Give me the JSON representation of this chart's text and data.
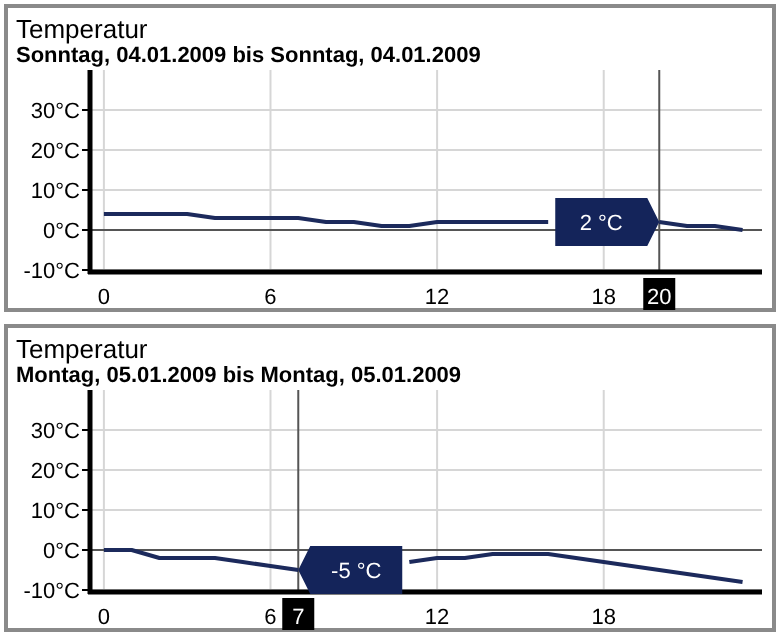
{
  "chart_data": [
    {
      "type": "line",
      "title": "Temperatur",
      "subtitle": "Sonntag, 04.01.2009 bis Sonntag, 04.01.2009",
      "x": [
        0,
        1,
        2,
        3,
        4,
        5,
        6,
        7,
        8,
        9,
        10,
        11,
        12,
        13,
        14,
        15,
        16,
        17,
        18,
        19,
        20,
        21,
        22,
        23
      ],
      "series": [
        {
          "color": "#1c2a5c",
          "values": [
            4,
            4,
            4,
            4,
            3,
            3,
            3,
            3,
            2,
            2,
            1,
            1,
            2,
            2,
            2,
            2,
            2,
            null,
            null,
            null,
            2,
            1,
            1,
            0
          ]
        }
      ],
      "xlim": [
        -0.5,
        23.7
      ],
      "xticks": [
        0,
        6,
        12,
        18
      ],
      "ylim": [
        -10.5,
        40
      ],
      "yticks": [
        {
          "value": -10,
          "label": "-10°C"
        },
        {
          "value": 0,
          "label": "0°C"
        },
        {
          "value": 10,
          "label": "10°C"
        },
        {
          "value": 20,
          "label": "20°C"
        },
        {
          "value": 30,
          "label": "30°C"
        }
      ],
      "grid": true,
      "marker": "none",
      "line_style": "solid",
      "ref_lines": [
        {
          "axis": "y",
          "value": 0,
          "color": "#555555"
        },
        {
          "axis": "x",
          "value": 20,
          "label": "20",
          "color": "#555555"
        }
      ],
      "annotations": [
        {
          "text": "2 °C",
          "x": 20,
          "y": 2
        }
      ]
    },
    {
      "type": "line",
      "title": "Temperatur",
      "subtitle": "Montag, 05.01.2009 bis Montag, 05.01.2009",
      "x": [
        0,
        1,
        2,
        3,
        4,
        5,
        6,
        7,
        8,
        9,
        10,
        11,
        12,
        13,
        14,
        15,
        16,
        17,
        18,
        19,
        20,
        21,
        22,
        23
      ],
      "series": [
        {
          "color": "#1c2a5c",
          "values": [
            0,
            0,
            -2,
            -2,
            -2,
            -3,
            -4,
            -5,
            null,
            null,
            null,
            -3,
            -2,
            -2,
            -1,
            -1,
            -1,
            -2,
            -3,
            -4,
            -5,
            -6,
            -7,
            -8
          ]
        }
      ],
      "xlim": [
        -0.5,
        23.7
      ],
      "xticks": [
        0,
        6,
        12,
        18
      ],
      "ylim": [
        -10.5,
        40
      ],
      "yticks": [
        {
          "value": -10,
          "label": "-10°C"
        },
        {
          "value": 0,
          "label": "0°C"
        },
        {
          "value": 10,
          "label": "10°C"
        },
        {
          "value": 20,
          "label": "20°C"
        },
        {
          "value": 30,
          "label": "30°C"
        }
      ],
      "grid": true,
      "marker": "none",
      "line_style": "solid",
      "ref_lines": [
        {
          "axis": "y",
          "value": 0,
          "color": "#555555"
        },
        {
          "axis": "x",
          "value": 7,
          "label": "7",
          "color": "#555555"
        }
      ],
      "annotations": [
        {
          "text": "-5 °C",
          "x": 7,
          "y": -5
        }
      ]
    }
  ]
}
